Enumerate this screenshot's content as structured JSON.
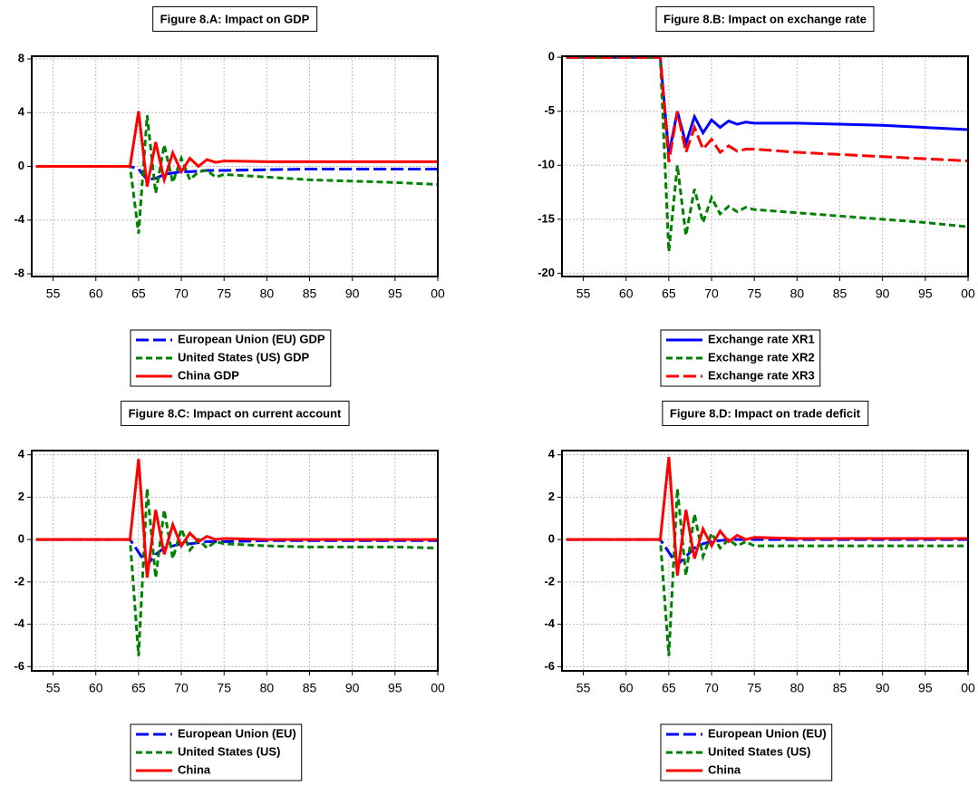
{
  "chart_data": [
    {
      "type": "line",
      "title": "Figure 8.A: Impact on GDP",
      "x": [
        1953,
        1964,
        1965,
        1966,
        1967,
        1968,
        1969,
        1970,
        1971,
        1972,
        1973,
        1974,
        1975,
        1980,
        1985,
        1990,
        1995,
        2000
      ],
      "xlim": [
        1952.5,
        2000
      ],
      "xticks": [
        {
          "value": 1955,
          "label": "55"
        },
        {
          "value": 1960,
          "label": "60"
        },
        {
          "value": 1965,
          "label": "65"
        },
        {
          "value": 1970,
          "label": "70"
        },
        {
          "value": 1975,
          "label": "75"
        },
        {
          "value": 1980,
          "label": "80"
        },
        {
          "value": 1985,
          "label": "85"
        },
        {
          "value": 1990,
          "label": "90"
        },
        {
          "value": 1995,
          "label": "95"
        },
        {
          "value": 2000,
          "label": "00"
        }
      ],
      "ylim": [
        -8.2,
        8.2
      ],
      "yticks": [
        -8,
        -4,
        0,
        4,
        8
      ],
      "grid": true,
      "series": [
        {
          "name": "European Union (EU) GDP",
          "color": "#0000ff",
          "line_style": "long-dash",
          "values": [
            0,
            0,
            -0.2,
            -1.0,
            -0.9,
            -0.6,
            -0.5,
            -0.4,
            -0.4,
            -0.35,
            -0.3,
            -0.3,
            -0.3,
            -0.25,
            -0.2,
            -0.2,
            -0.2,
            -0.2
          ]
        },
        {
          "name": "United States (US) GDP",
          "color": "#008000",
          "line_style": "dashed",
          "values": [
            0,
            0,
            -5.0,
            3.8,
            -2.0,
            1.6,
            -1.2,
            0.6,
            -1.0,
            -0.4,
            -0.3,
            -0.8,
            -0.6,
            -0.8,
            -1.0,
            -1.1,
            -1.2,
            -1.35
          ]
        },
        {
          "name": "China GDP",
          "color": "#ff0000",
          "line_style": "solid",
          "values": [
            0,
            0,
            4.1,
            -1.5,
            1.8,
            -1.0,
            1.0,
            -0.4,
            0.6,
            0,
            0.5,
            0.3,
            0.4,
            0.35,
            0.35,
            0.35,
            0.35,
            0.35
          ]
        }
      ]
    },
    {
      "type": "line",
      "title": "Figure 8.B: Impact on exchange rate",
      "x": [
        1953,
        1964,
        1965,
        1966,
        1967,
        1968,
        1969,
        1970,
        1971,
        1972,
        1973,
        1974,
        1975,
        1980,
        1985,
        1990,
        1995,
        2000
      ],
      "xlim": [
        1952.5,
        2000
      ],
      "xticks": [
        {
          "value": 1955,
          "label": "55"
        },
        {
          "value": 1960,
          "label": "60"
        },
        {
          "value": 1965,
          "label": "65"
        },
        {
          "value": 1970,
          "label": "70"
        },
        {
          "value": 1975,
          "label": "75"
        },
        {
          "value": 1980,
          "label": "80"
        },
        {
          "value": 1985,
          "label": "85"
        },
        {
          "value": 1990,
          "label": "90"
        },
        {
          "value": 1995,
          "label": "95"
        },
        {
          "value": 2000,
          "label": "00"
        }
      ],
      "ylim": [
        -20.3,
        0.1
      ],
      "yticks": [
        -20,
        -15,
        -10,
        -5,
        0
      ],
      "grid": true,
      "series": [
        {
          "name": "Exchange rate XR1",
          "color": "#0000ff",
          "line_style": "solid",
          "values": [
            0,
            0,
            -9,
            -5,
            -8,
            -5.5,
            -7,
            -5.8,
            -6.5,
            -5.9,
            -6.2,
            -6,
            -6.1,
            -6.1,
            -6.2,
            -6.3,
            -6.5,
            -6.7
          ]
        },
        {
          "name": "Exchange rate XR2",
          "color": "#008000",
          "line_style": "dashed",
          "values": [
            0,
            0,
            -18,
            -10,
            -16.5,
            -12.2,
            -15.3,
            -13,
            -14.5,
            -13.8,
            -14.3,
            -13.9,
            -14.1,
            -14.4,
            -14.7,
            -15,
            -15.3,
            -15.7
          ]
        },
        {
          "name": "Exchange rate XR3",
          "color": "#ff0000",
          "line_style": "long-dash",
          "values": [
            0,
            0,
            -9.7,
            -5,
            -8.8,
            -6.5,
            -8.5,
            -7.6,
            -8.8,
            -8.2,
            -8.7,
            -8.5,
            -8.5,
            -8.8,
            -9,
            -9.2,
            -9.4,
            -9.6
          ]
        }
      ]
    },
    {
      "type": "line",
      "title": "Figure 8.C: Impact on current account",
      "x": [
        1953,
        1964,
        1965,
        1966,
        1967,
        1968,
        1969,
        1970,
        1971,
        1972,
        1973,
        1974,
        1975,
        1980,
        1985,
        1990,
        1995,
        2000
      ],
      "xlim": [
        1952.5,
        2000
      ],
      "xticks": [
        {
          "value": 1955,
          "label": "55"
        },
        {
          "value": 1960,
          "label": "60"
        },
        {
          "value": 1965,
          "label": "65"
        },
        {
          "value": 1970,
          "label": "70"
        },
        {
          "value": 1975,
          "label": "75"
        },
        {
          "value": 1980,
          "label": "80"
        },
        {
          "value": 1985,
          "label": "85"
        },
        {
          "value": 1990,
          "label": "90"
        },
        {
          "value": 1995,
          "label": "95"
        },
        {
          "value": 2000,
          "label": "00"
        }
      ],
      "ylim": [
        -6.2,
        4.2
      ],
      "yticks": [
        -6,
        -4,
        -2,
        0,
        2,
        4
      ],
      "grid": true,
      "series": [
        {
          "name": "European Union (EU)",
          "color": "#0000ff",
          "line_style": "long-dash",
          "values": [
            0,
            0,
            -0.6,
            -1.2,
            -0.7,
            -0.4,
            -0.3,
            -0.2,
            -0.2,
            -0.15,
            -0.1,
            -0.1,
            -0.1,
            -0.05,
            -0.05,
            -0.05,
            -0.05,
            -0.05
          ]
        },
        {
          "name": "United States (US)",
          "color": "#008000",
          "line_style": "dashed",
          "values": [
            0,
            0,
            -5.5,
            2.4,
            -1.8,
            1.4,
            -0.9,
            0.5,
            -0.5,
            0,
            -0.4,
            -0.1,
            -0.2,
            -0.3,
            -0.35,
            -0.35,
            -0.35,
            -0.4
          ]
        },
        {
          "name": "China",
          "color": "#ff0000",
          "line_style": "solid",
          "values": [
            0,
            0,
            3.8,
            -1.8,
            1.4,
            -0.7,
            0.7,
            -0.3,
            0.3,
            -0.1,
            0.15,
            0,
            0.05,
            0,
            0,
            0,
            0,
            0
          ]
        }
      ]
    },
    {
      "type": "line",
      "title": "Figure 8.D: Impact on trade deficit",
      "x": [
        1953,
        1964,
        1965,
        1966,
        1967,
        1968,
        1969,
        1970,
        1971,
        1972,
        1973,
        1974,
        1975,
        1980,
        1985,
        1990,
        1995,
        2000
      ],
      "xlim": [
        1952.5,
        2000
      ],
      "xticks": [
        {
          "value": 1955,
          "label": "55"
        },
        {
          "value": 1960,
          "label": "60"
        },
        {
          "value": 1965,
          "label": "65"
        },
        {
          "value": 1970,
          "label": "70"
        },
        {
          "value": 1975,
          "label": "75"
        },
        {
          "value": 1980,
          "label": "80"
        },
        {
          "value": 1985,
          "label": "85"
        },
        {
          "value": 1990,
          "label": "90"
        },
        {
          "value": 1995,
          "label": "95"
        },
        {
          "value": 2000,
          "label": "00"
        }
      ],
      "ylim": [
        -6.2,
        4.2
      ],
      "yticks": [
        -6,
        -4,
        -2,
        0,
        2,
        4
      ],
      "grid": true,
      "series": [
        {
          "name": "European Union (EU)",
          "color": "#0000ff",
          "line_style": "long-dash",
          "values": [
            0,
            0,
            -0.6,
            -1.2,
            -0.8,
            -0.4,
            -0.2,
            -0.1,
            -0.05,
            0,
            0,
            0,
            0,
            0,
            0,
            0,
            0,
            0
          ]
        },
        {
          "name": "United States (US)",
          "color": "#008000",
          "line_style": "dashed",
          "values": [
            0,
            0,
            -5.5,
            2.4,
            -1.7,
            1.2,
            -0.8,
            0.3,
            -0.4,
            0,
            -0.3,
            -0.1,
            -0.3,
            -0.3,
            -0.3,
            -0.3,
            -0.3,
            -0.3
          ]
        },
        {
          "name": "China",
          "color": "#ff0000",
          "line_style": "solid",
          "values": [
            0,
            0,
            3.9,
            -1.7,
            1.4,
            -0.9,
            0.5,
            -0.3,
            0.4,
            -0.1,
            0.2,
            0,
            0.1,
            0.05,
            0.05,
            0.05,
            0.05,
            0.05
          ]
        }
      ]
    }
  ]
}
